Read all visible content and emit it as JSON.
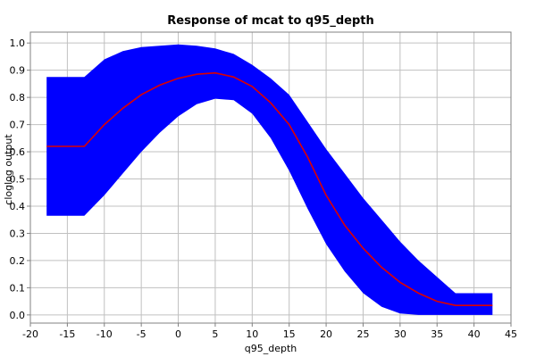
{
  "chart_data": {
    "type": "area",
    "title": "Response of mcat to q95_depth",
    "xlabel": "q95_depth",
    "ylabel": "cloglog output",
    "xlim": [
      -20,
      45
    ],
    "ylim": [
      -0.03,
      1.04
    ],
    "xticks": [
      "-20",
      "-15",
      "-10",
      "-5",
      "0",
      "5",
      "10",
      "15",
      "20",
      "25",
      "30",
      "35",
      "40",
      "45"
    ],
    "yticks": [
      "0.0",
      "0.1",
      "0.2",
      "0.3",
      "0.4",
      "0.5",
      "0.6",
      "0.7",
      "0.8",
      "0.9",
      "1.0"
    ],
    "grid": true,
    "legend": "none",
    "x": [
      -17.8,
      -12.7,
      -10,
      -7.5,
      -5,
      -2.5,
      0,
      2.5,
      5,
      7.5,
      10,
      12.5,
      15,
      17.5,
      20,
      22.5,
      25,
      27.5,
      30,
      32.5,
      35,
      37.5,
      40,
      42.5
    ],
    "series": [
      {
        "role": "mean",
        "color": "#dd0000",
        "values": [
          0.62,
          0.62,
          0.7,
          0.76,
          0.81,
          0.845,
          0.87,
          0.885,
          0.89,
          0.875,
          0.84,
          0.78,
          0.7,
          0.58,
          0.44,
          0.33,
          0.245,
          0.175,
          0.12,
          0.08,
          0.05,
          0.035,
          0.035,
          0.035
        ]
      },
      {
        "role": "upper",
        "color": "#0000ff",
        "values": [
          0.875,
          0.875,
          0.94,
          0.97,
          0.985,
          0.99,
          0.995,
          0.99,
          0.98,
          0.96,
          0.92,
          0.87,
          0.81,
          0.71,
          0.61,
          0.52,
          0.43,
          0.35,
          0.27,
          0.2,
          0.14,
          0.08,
          0.08,
          0.08
        ]
      },
      {
        "role": "lower",
        "color": "#0000ff",
        "values": [
          0.365,
          0.365,
          0.44,
          0.52,
          0.6,
          0.67,
          0.73,
          0.775,
          0.795,
          0.79,
          0.74,
          0.65,
          0.53,
          0.39,
          0.26,
          0.16,
          0.08,
          0.03,
          0.005,
          0.0,
          0.0,
          0.0,
          0.0,
          0.0
        ]
      }
    ]
  }
}
